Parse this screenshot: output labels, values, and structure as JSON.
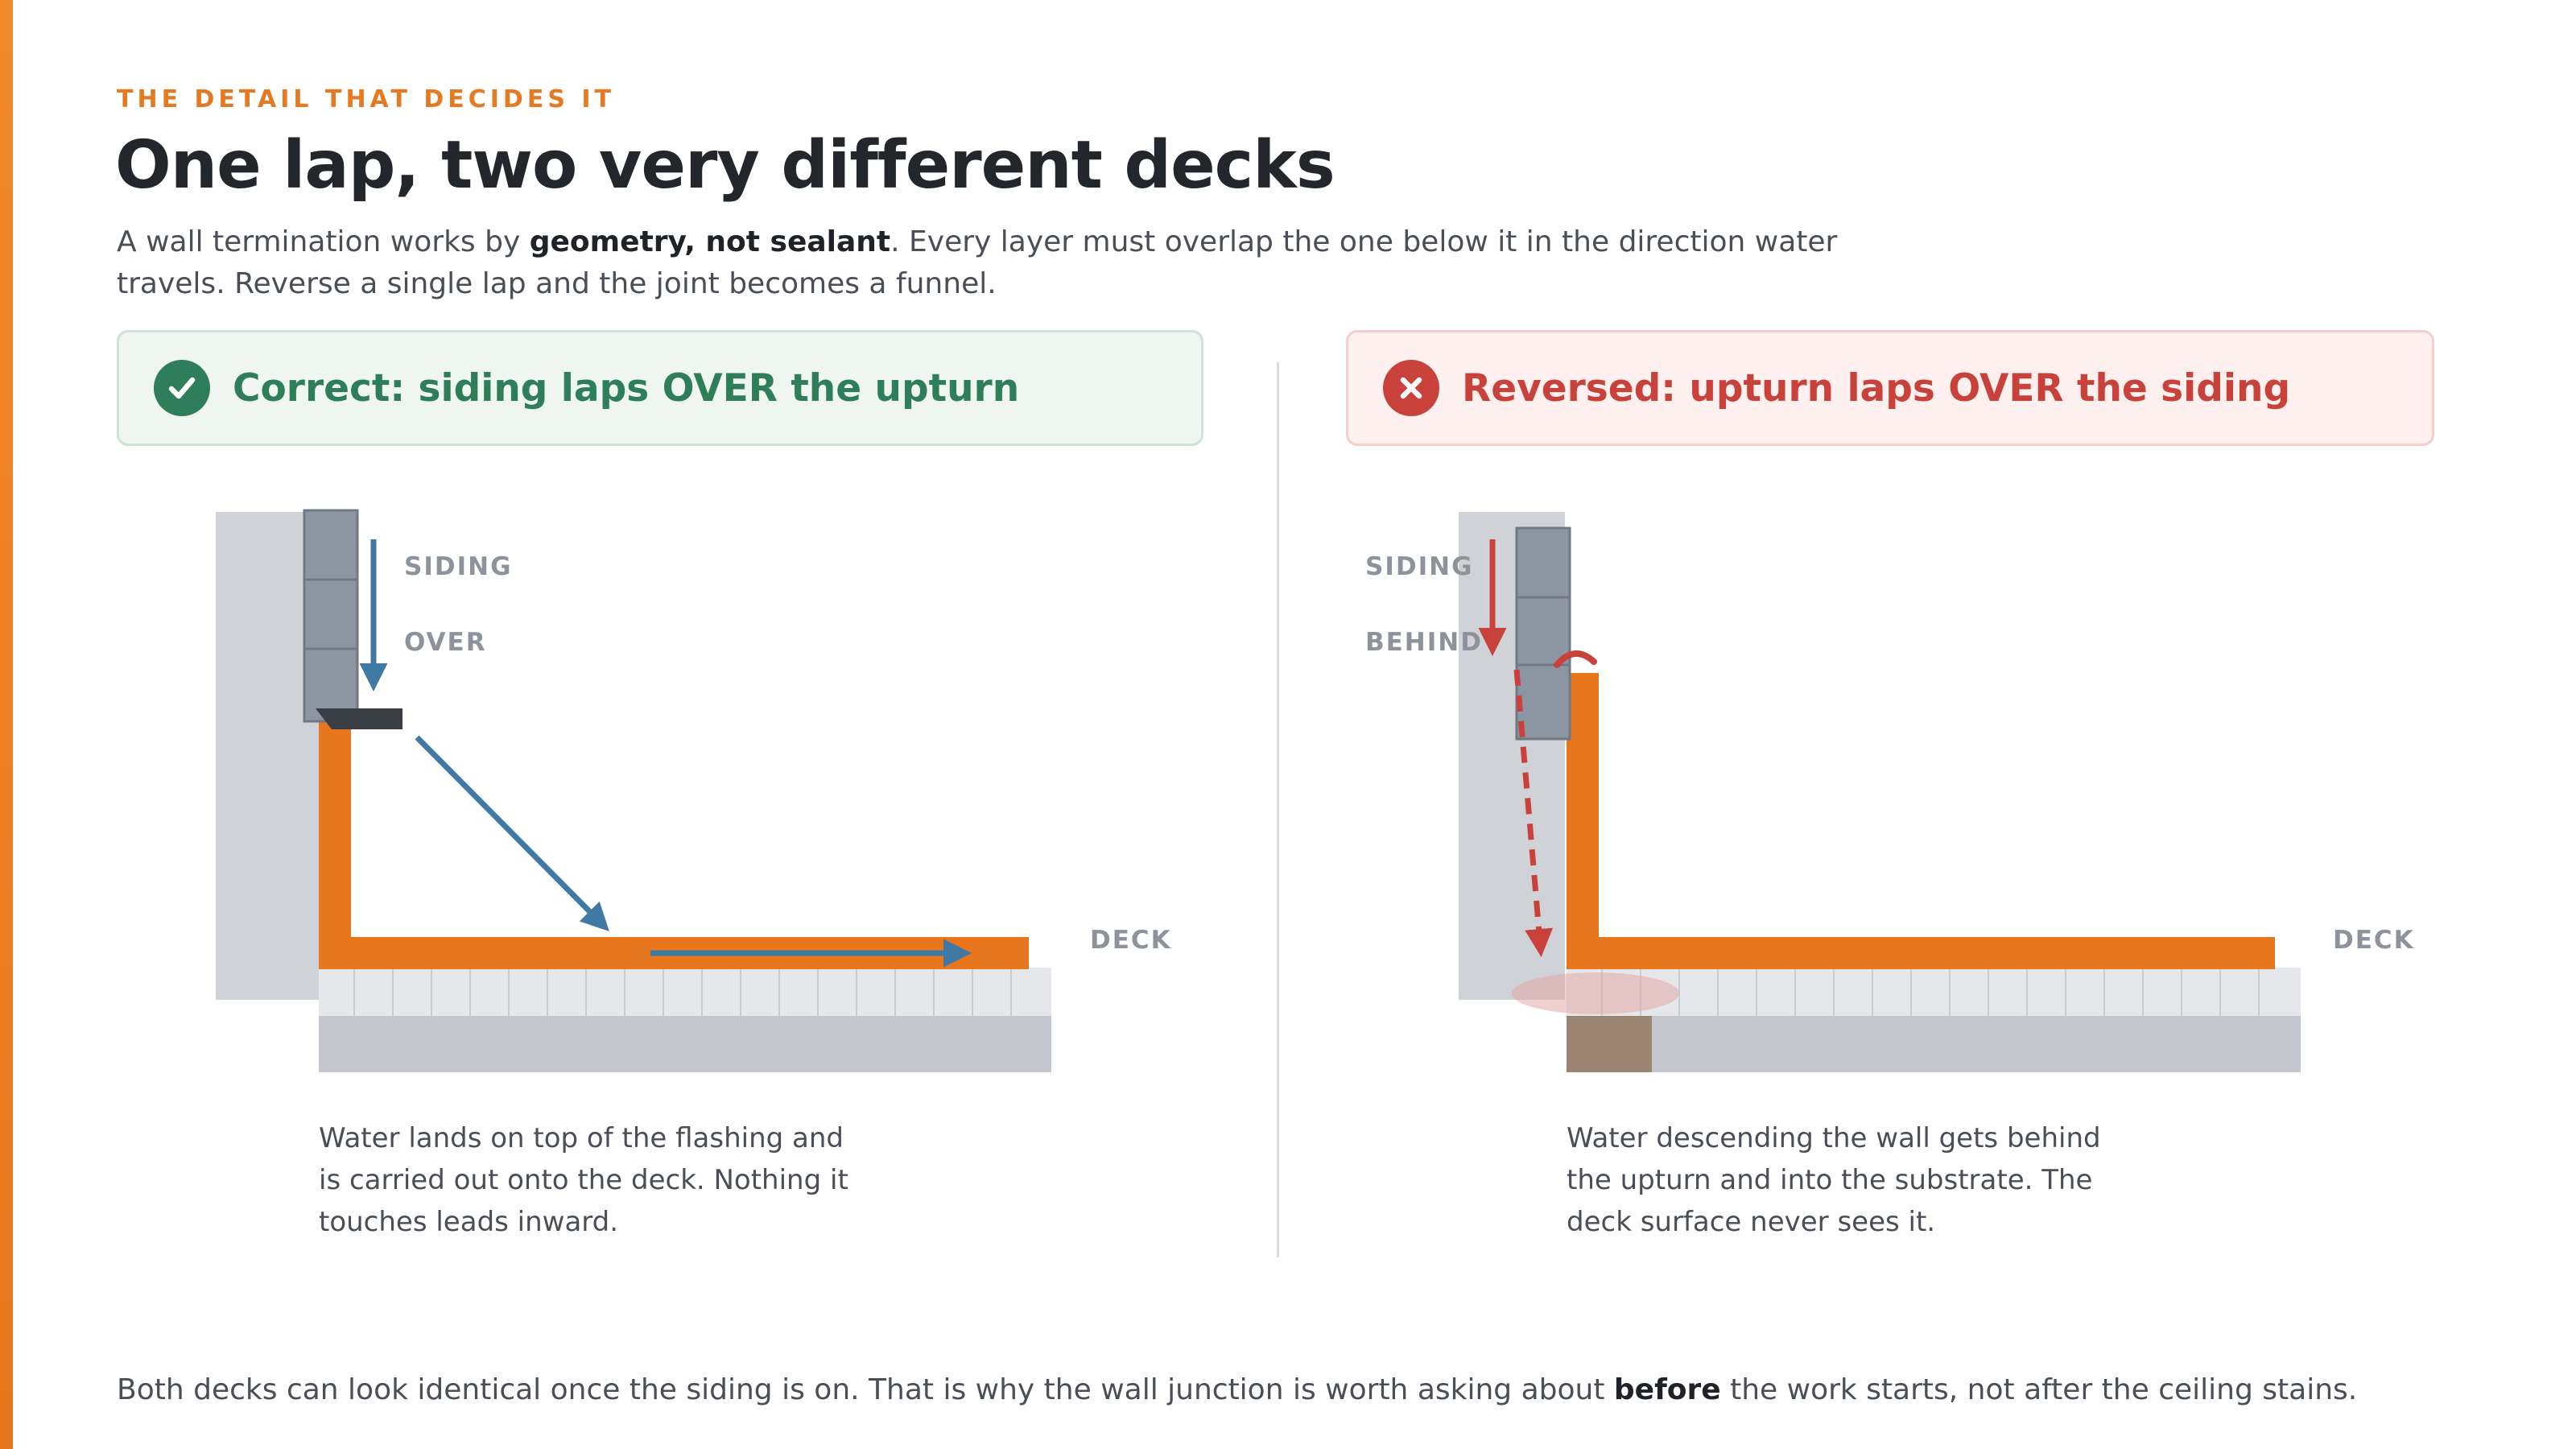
{
  "eyebrow": "THE DETAIL THAT DECIDES IT",
  "title": "One lap, two very different decks",
  "intro": {
    "before": "A wall termination works by ",
    "bold": "geometry, not sealant",
    "after": ". Every layer must overlap the one below it in the direction water travels. Reverse a single lap and the joint becomes a funnel."
  },
  "panels": {
    "correct": {
      "heading": "Correct: siding laps OVER the upturn",
      "icon": "check-circle-icon",
      "color": "#2e7d5b",
      "labels": {
        "siding": "SIDING",
        "relation": "OVER",
        "deck": "DECK"
      },
      "caption": "Water lands on top of the flashing and is carried out onto the deck. Nothing it touches leads inward."
    },
    "reversed": {
      "heading": "Reversed: upturn laps OVER the siding",
      "icon": "x-circle-icon",
      "color": "#c9413b",
      "labels": {
        "siding": "SIDING",
        "relation": "BEHIND",
        "deck": "DECK"
      },
      "caption": "Water descending the wall gets behind the upturn and into the substrate. The deck surface never sees it."
    }
  },
  "colors": {
    "flashing": "#e8761c",
    "water_flow": "#3f79a4",
    "leak_flow": "#c9413b",
    "wall": "#cfd2d7",
    "siding": "#8c96a3",
    "rot": "#9c8472"
  },
  "footer": {
    "before": "Both decks can look identical once the siding is on. That is why the wall junction is worth asking about ",
    "bold": "before",
    "after": " the work starts, not after the ceiling stains."
  }
}
